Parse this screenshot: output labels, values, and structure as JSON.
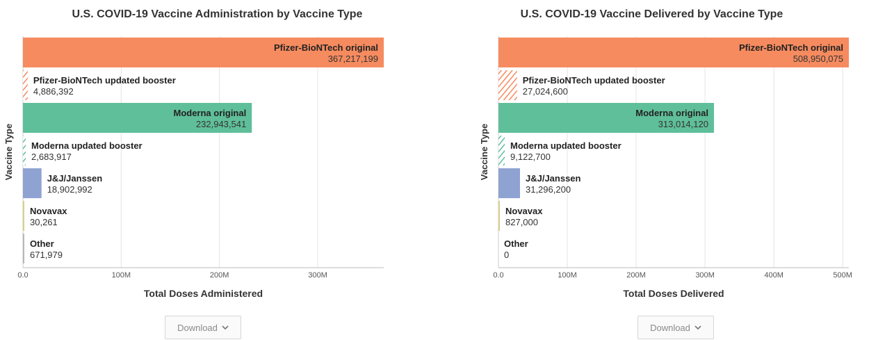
{
  "chart_data": [
    {
      "type": "bar",
      "orientation": "horizontal",
      "title": "U.S. COVID-19 Vaccine Administration by Vaccine Type",
      "xlabel": "Total Doses Administered",
      "ylabel": "Vaccine Type",
      "xlim": [
        0,
        367217199
      ],
      "xticks": [
        0,
        100000000,
        200000000,
        300000000
      ],
      "xtick_labels": [
        "0.0",
        "100M",
        "200M",
        "300M"
      ],
      "grid": "vertical",
      "categories": [
        "Pfizer-BioNTech original",
        "Pfizer-BioNTech updated booster",
        "Moderna original",
        "Moderna updated booster",
        "J&J/Janssen",
        "Novavax",
        "Other"
      ],
      "values": [
        367217199,
        4886392,
        232943541,
        2683917,
        18902992,
        30261,
        671979
      ],
      "value_labels": [
        "367,217,199",
        "4,886,392",
        "232,943,541",
        "2,683,917",
        "18,902,992",
        "30,261",
        "671,979"
      ],
      "colors": [
        "#f68b5f",
        "#f68b5f",
        "#5fbf9a",
        "#5fbf9a",
        "#8fa3d2",
        "#d9d08a",
        "#b8b8b8"
      ],
      "patterns": [
        "solid",
        "hatched",
        "solid",
        "hatched",
        "solid",
        "solid",
        "solid"
      ]
    },
    {
      "type": "bar",
      "orientation": "horizontal",
      "title": "U.S. COVID-19 Vaccine Delivered by Vaccine Type",
      "xlabel": "Total Doses Delivered",
      "ylabel": "Vaccine Type",
      "xlim": [
        0,
        508950075
      ],
      "xticks": [
        0,
        100000000,
        200000000,
        300000000,
        400000000,
        500000000
      ],
      "xtick_labels": [
        "0.0",
        "100M",
        "200M",
        "300M",
        "400M",
        "500M"
      ],
      "grid": "vertical",
      "categories": [
        "Pfizer-BioNTech original",
        "Pfizer-BioNTech updated booster",
        "Moderna original",
        "Moderna updated booster",
        "J&J/Janssen",
        "Novavax",
        "Other"
      ],
      "values": [
        508950075,
        27024600,
        313014120,
        9122700,
        31296200,
        827000,
        0
      ],
      "value_labels": [
        "508,950,075",
        "27,024,600",
        "313,014,120",
        "9,122,700",
        "31,296,200",
        "827,000",
        "0"
      ],
      "colors": [
        "#f68b5f",
        "#f68b5f",
        "#5fbf9a",
        "#5fbf9a",
        "#8fa3d2",
        "#d9d08a",
        "#b8b8b8"
      ],
      "patterns": [
        "solid",
        "hatched",
        "solid",
        "hatched",
        "solid",
        "solid",
        "solid"
      ]
    }
  ],
  "download": {
    "label": "Download",
    "icon": "chevron-down-icon"
  }
}
